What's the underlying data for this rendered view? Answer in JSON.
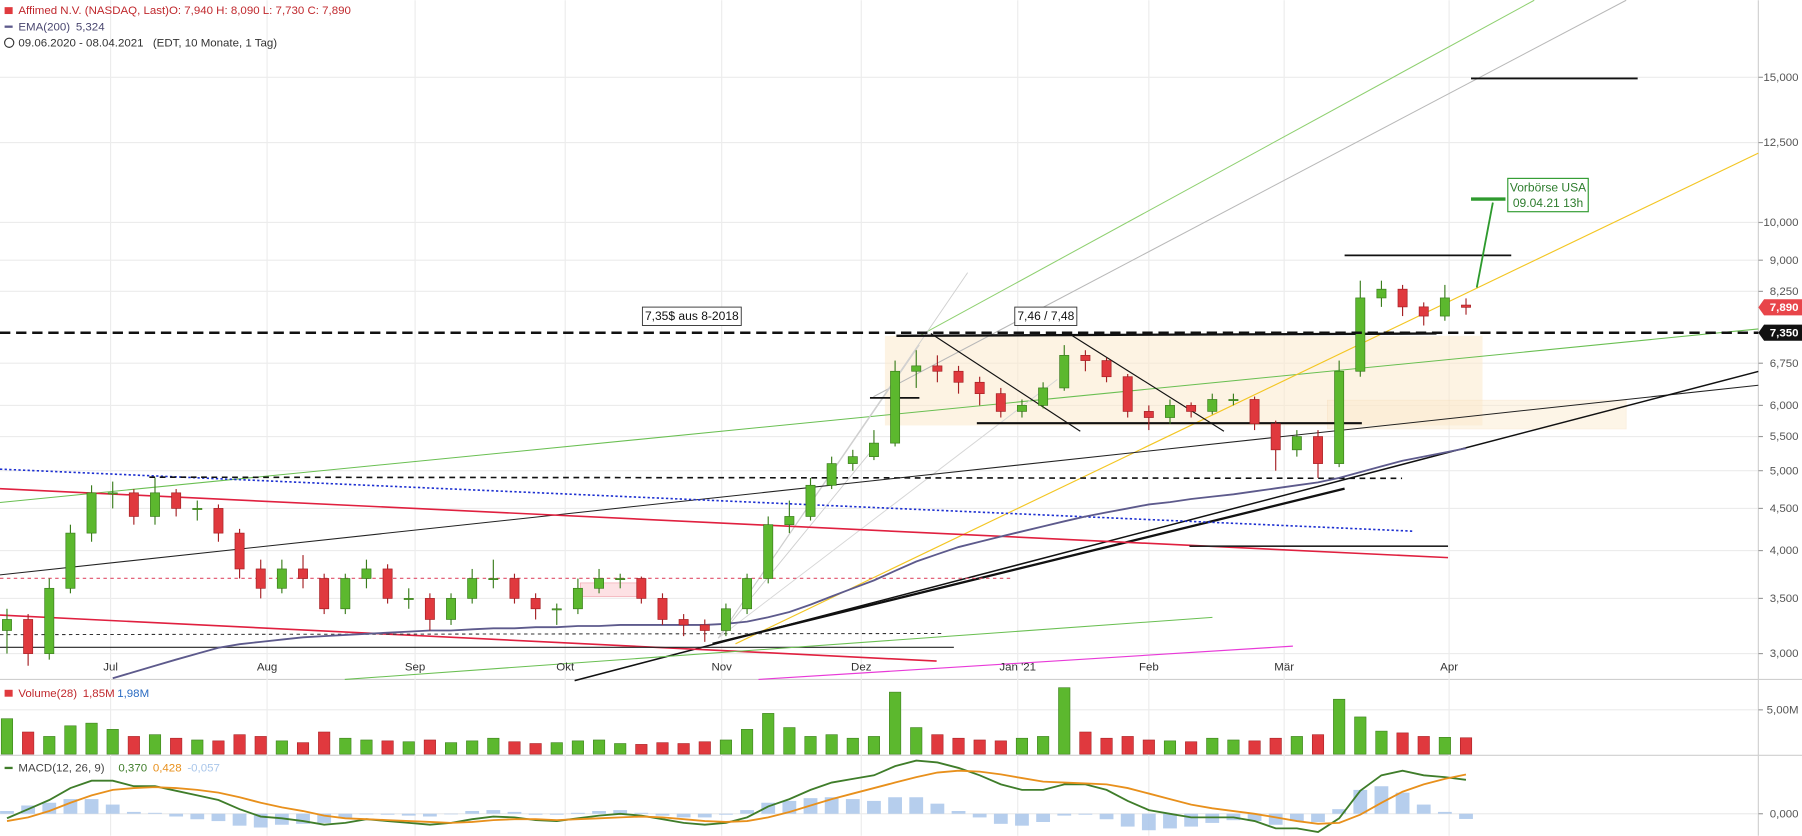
{
  "chart_data": [
    {
      "type": "candlestick",
      "title": "Affimed N.V. (NASDAQ, Last)",
      "ohlc_legend": "O: 7,940  H: 8,090  L: 7,730  C: 7,890",
      "period": "09.06.2020 - 08.04.2021",
      "period_note": "(EDT, 10 Monate, 1 Tag)",
      "up_color": "#5cb82e",
      "down_color": "#e0393e",
      "ohlc": [
        [
          3.2,
          3.4,
          3.0,
          3.3
        ],
        [
          3.3,
          3.35,
          2.9,
          3.0
        ],
        [
          3.0,
          3.7,
          2.95,
          3.6
        ],
        [
          3.6,
          4.3,
          3.55,
          4.2
        ],
        [
          4.2,
          4.8,
          4.1,
          4.7
        ],
        [
          4.7,
          4.85,
          4.5,
          4.7
        ],
        [
          4.7,
          4.75,
          4.3,
          4.4
        ],
        [
          4.4,
          4.9,
          4.3,
          4.7
        ],
        [
          4.7,
          4.75,
          4.4,
          4.5
        ],
        [
          4.5,
          4.6,
          4.35,
          4.5
        ],
        [
          4.5,
          4.55,
          4.1,
          4.2
        ],
        [
          4.2,
          4.25,
          3.7,
          3.8
        ],
        [
          3.8,
          3.9,
          3.5,
          3.6
        ],
        [
          3.6,
          3.9,
          3.55,
          3.8
        ],
        [
          3.8,
          3.95,
          3.6,
          3.7
        ],
        [
          3.7,
          3.75,
          3.35,
          3.4
        ],
        [
          3.4,
          3.75,
          3.35,
          3.7
        ],
        [
          3.7,
          3.9,
          3.6,
          3.8
        ],
        [
          3.8,
          3.85,
          3.45,
          3.5
        ],
        [
          3.5,
          3.6,
          3.4,
          3.5
        ],
        [
          3.5,
          3.55,
          3.2,
          3.3
        ],
        [
          3.3,
          3.55,
          3.25,
          3.5
        ],
        [
          3.5,
          3.8,
          3.45,
          3.7
        ],
        [
          3.7,
          3.9,
          3.6,
          3.7
        ],
        [
          3.7,
          3.75,
          3.45,
          3.5
        ],
        [
          3.5,
          3.55,
          3.3,
          3.4
        ],
        [
          3.4,
          3.45,
          3.25,
          3.4
        ],
        [
          3.4,
          3.7,
          3.35,
          3.6
        ],
        [
          3.6,
          3.8,
          3.55,
          3.7
        ],
        [
          3.7,
          3.75,
          3.6,
          3.7
        ],
        [
          3.7,
          3.72,
          3.45,
          3.5
        ],
        [
          3.5,
          3.55,
          3.25,
          3.3
        ],
        [
          3.3,
          3.35,
          3.15,
          3.25
        ],
        [
          3.25,
          3.3,
          3.1,
          3.2
        ],
        [
          3.2,
          3.45,
          3.15,
          3.4
        ],
        [
          3.4,
          3.75,
          3.35,
          3.7
        ],
        [
          3.7,
          4.4,
          3.65,
          4.3
        ],
        [
          4.3,
          4.6,
          4.2,
          4.4
        ],
        [
          4.4,
          4.9,
          4.35,
          4.8
        ],
        [
          4.8,
          5.2,
          4.75,
          5.1
        ],
        [
          5.1,
          5.3,
          5.0,
          5.2
        ],
        [
          5.2,
          5.6,
          5.15,
          5.4
        ],
        [
          5.4,
          6.8,
          5.35,
          6.6
        ],
        [
          6.6,
          7.0,
          6.3,
          6.7
        ],
        [
          6.7,
          6.9,
          6.4,
          6.6
        ],
        [
          6.6,
          6.7,
          6.2,
          6.4
        ],
        [
          6.4,
          6.5,
          6.0,
          6.2
        ],
        [
          6.2,
          6.3,
          5.8,
          5.9
        ],
        [
          5.9,
          6.1,
          5.8,
          6.0
        ],
        [
          6.0,
          6.4,
          5.95,
          6.3
        ],
        [
          6.3,
          7.1,
          6.25,
          6.9
        ],
        [
          6.9,
          7.0,
          6.6,
          6.8
        ],
        [
          6.8,
          6.85,
          6.4,
          6.5
        ],
        [
          6.5,
          6.55,
          5.8,
          5.9
        ],
        [
          5.9,
          6.0,
          5.6,
          5.8
        ],
        [
          5.8,
          6.1,
          5.7,
          6.0
        ],
        [
          6.0,
          6.05,
          5.8,
          5.9
        ],
        [
          5.9,
          6.2,
          5.85,
          6.1
        ],
        [
          6.1,
          6.2,
          6.0,
          6.1
        ],
        [
          6.1,
          6.15,
          5.6,
          5.7
        ],
        [
          5.7,
          5.75,
          5.0,
          5.3
        ],
        [
          5.3,
          5.6,
          5.2,
          5.5
        ],
        [
          5.5,
          5.6,
          4.9,
          5.1
        ],
        [
          5.1,
          6.8,
          5.05,
          6.6
        ],
        [
          6.6,
          8.5,
          6.5,
          8.1
        ],
        [
          8.1,
          8.5,
          7.9,
          8.3
        ],
        [
          8.3,
          8.4,
          7.7,
          7.9
        ],
        [
          7.9,
          8.0,
          7.5,
          7.7
        ],
        [
          7.7,
          8.4,
          7.6,
          8.1
        ],
        [
          7.94,
          8.09,
          7.73,
          7.89
        ]
      ],
      "ema": {
        "name": "EMA(200)",
        "value_label": "5,324",
        "color": "#5d5a8c",
        "values": [
          null,
          null,
          null,
          null,
          null,
          2.8,
          2.85,
          2.9,
          2.95,
          3.0,
          3.05,
          3.08,
          3.1,
          3.12,
          3.14,
          3.15,
          3.16,
          3.17,
          3.18,
          3.19,
          3.2,
          3.2,
          3.21,
          3.22,
          3.22,
          3.23,
          3.23,
          3.24,
          3.24,
          3.25,
          3.25,
          3.25,
          3.25,
          3.25,
          3.26,
          3.28,
          3.32,
          3.37,
          3.44,
          3.52,
          3.6,
          3.68,
          3.78,
          3.88,
          3.96,
          4.04,
          4.1,
          4.16,
          4.22,
          4.28,
          4.34,
          4.4,
          4.45,
          4.5,
          4.55,
          4.58,
          4.62,
          4.65,
          4.68,
          4.72,
          4.76,
          4.8,
          4.84,
          4.9,
          4.98,
          5.06,
          5.14,
          5.2,
          5.26,
          5.324
        ]
      },
      "log_scale": true,
      "grid": true,
      "ylim": [
        2.8,
        18.6
      ],
      "yticks": [
        {
          "value": 3,
          "label": "3,000"
        },
        {
          "value": 3.5,
          "label": "3,500"
        },
        {
          "value": 4,
          "label": "4,000"
        },
        {
          "value": 4.5,
          "label": "4,500"
        },
        {
          "value": 5,
          "label": "5,000"
        },
        {
          "value": 5.5,
          "label": "5,500"
        },
        {
          "value": 6,
          "label": "6,000"
        },
        {
          "value": 6.75,
          "label": "6,750"
        },
        {
          "value": 8.25,
          "label": "8,250"
        },
        {
          "value": 9,
          "label": "9,000"
        },
        {
          "value": 10,
          "label": "10,000"
        },
        {
          "value": 12.5,
          "label": "12,500"
        },
        {
          "value": 15,
          "label": "15,000"
        }
      ],
      "xlim": [
        -0.33,
        69.78
      ],
      "xticks": [
        {
          "value": 4.9,
          "label": "Jul"
        },
        {
          "value": 12.3,
          "label": "Aug"
        },
        {
          "value": 19.3,
          "label": "Sep"
        },
        {
          "value": 26.4,
          "label": "Okt"
        },
        {
          "value": 33.8,
          "label": "Nov"
        },
        {
          "value": 40.4,
          "label": "Dez"
        },
        {
          "value": 47.8,
          "label": "Jan '21"
        },
        {
          "value": 54,
          "label": "Feb"
        },
        {
          "value": 60.4,
          "label": "Mär"
        },
        {
          "value": 68.2,
          "label": "Apr"
        }
      ],
      "annotations": [
        "7,35$ aus 8-2018",
        "7,46 / 7,48",
        "Vorbörse USA",
        "09.04.21 13h"
      ],
      "price_tags": [
        {
          "value": 7.89,
          "label": "7,890",
          "color": "#e8454a"
        },
        {
          "value": 7.35,
          "label": "7,350",
          "color": "#111111"
        }
      ]
    },
    {
      "type": "bar",
      "title": "Volume(28)",
      "legend_values": [
        "1,85M",
        "1,98M"
      ],
      "values": [
        4.0,
        2.5,
        2.0,
        3.2,
        3.5,
        2.8,
        2.0,
        2.2,
        1.8,
        1.6,
        1.5,
        2.2,
        2.0,
        1.5,
        1.3,
        2.5,
        1.8,
        1.6,
        1.5,
        1.4,
        1.6,
        1.3,
        1.5,
        1.8,
        1.4,
        1.2,
        1.3,
        1.5,
        1.6,
        1.2,
        1.1,
        1.3,
        1.2,
        1.4,
        1.6,
        2.8,
        4.6,
        3.0,
        2.0,
        2.2,
        1.8,
        2.0,
        7.0,
        3.0,
        2.2,
        1.8,
        1.6,
        1.5,
        1.8,
        2.0,
        7.5,
        2.5,
        1.8,
        2.0,
        1.6,
        1.5,
        1.4,
        1.8,
        1.6,
        1.5,
        1.8,
        2.0,
        2.2,
        6.2,
        4.2,
        2.6,
        2.4,
        2.0,
        1.9,
        1.85
      ],
      "ylim": [
        0,
        8.3
      ],
      "yticks": [
        {
          "value": 5,
          "label": "5,00M"
        }
      ]
    },
    {
      "type": "line",
      "title": "MACD(12, 26, 9)",
      "series": [
        {
          "name": "0,370",
          "color": "#3f7d2a",
          "values": [
            -0.05,
            0.05,
            0.15,
            0.28,
            0.36,
            0.36,
            0.3,
            0.3,
            0.25,
            0.2,
            0.15,
            0.05,
            -0.03,
            -0.05,
            -0.08,
            -0.12,
            -0.1,
            -0.06,
            -0.08,
            -0.1,
            -0.12,
            -0.1,
            -0.06,
            -0.03,
            -0.04,
            -0.07,
            -0.08,
            -0.05,
            -0.02,
            0,
            -0.02,
            -0.06,
            -0.1,
            -0.12,
            -0.1,
            -0.04,
            0.08,
            0.16,
            0.26,
            0.34,
            0.38,
            0.42,
            0.52,
            0.58,
            0.56,
            0.5,
            0.42,
            0.32,
            0.26,
            0.26,
            0.32,
            0.32,
            0.26,
            0.14,
            0.04,
            0,
            -0.04,
            -0.04,
            -0.04,
            -0.08,
            -0.16,
            -0.16,
            -0.2,
            -0.05,
            0.25,
            0.42,
            0.47,
            0.42,
            0.4,
            0.37
          ]
        },
        {
          "name": "0,428",
          "color": "#e8901c",
          "values": [
            -0.08,
            -0.04,
            0.03,
            0.12,
            0.2,
            0.26,
            0.28,
            0.29,
            0.28,
            0.26,
            0.23,
            0.18,
            0.12,
            0.07,
            0.03,
            -0.02,
            -0.05,
            -0.06,
            -0.07,
            -0.08,
            -0.09,
            -0.1,
            -0.09,
            -0.07,
            -0.06,
            -0.06,
            -0.07,
            -0.06,
            -0.05,
            -0.04,
            -0.03,
            -0.04,
            -0.06,
            -0.08,
            -0.09,
            -0.08,
            -0.04,
            0.02,
            0.09,
            0.16,
            0.22,
            0.28,
            0.34,
            0.4,
            0.45,
            0.47,
            0.46,
            0.43,
            0.39,
            0.35,
            0.34,
            0.33,
            0.32,
            0.28,
            0.22,
            0.16,
            0.1,
            0.06,
            0.03,
            0,
            -0.04,
            -0.08,
            -0.11,
            -0.1,
            -0.01,
            0.12,
            0.24,
            0.32,
            0.38,
            0.428
          ]
        }
      ],
      "histogram": {
        "name": "-0,057",
        "color": "#a9c6ea",
        "values": [
          0.03,
          0.09,
          0.12,
          0.16,
          0.16,
          0.1,
          0.02,
          0.01,
          -0.03,
          -0.06,
          -0.08,
          -0.13,
          -0.15,
          -0.12,
          -0.11,
          -0.1,
          -0.05,
          0,
          -0.01,
          -0.02,
          -0.03,
          0,
          0.03,
          0.04,
          0.02,
          -0.01,
          -0.01,
          0.01,
          0.03,
          0.04,
          0.01,
          -0.02,
          -0.04,
          -0.04,
          -0.01,
          0.04,
          0.12,
          0.14,
          0.17,
          0.18,
          0.16,
          0.14,
          0.18,
          0.18,
          0.11,
          0.03,
          -0.04,
          -0.11,
          -0.13,
          -0.09,
          -0.02,
          -0.01,
          -0.06,
          -0.14,
          -0.18,
          -0.16,
          -0.14,
          -0.1,
          -0.07,
          -0.08,
          -0.12,
          -0.08,
          -0.09,
          0.05,
          0.26,
          0.3,
          0.23,
          0.1,
          0.02,
          -0.057
        ]
      },
      "ylim": [
        -0.24,
        0.6
      ],
      "yticks": [
        {
          "value": 0,
          "label": "0,000"
        }
      ]
    }
  ]
}
